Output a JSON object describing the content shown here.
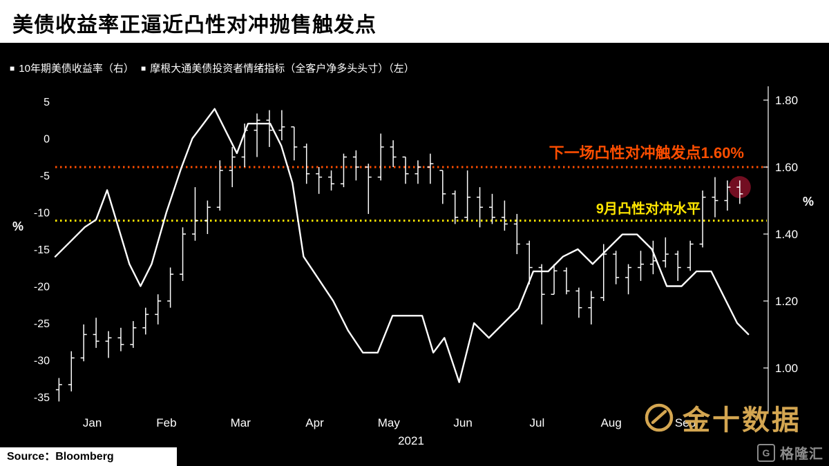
{
  "header": {
    "title": "美债收益率正逼近凸性对冲抛售触发点"
  },
  "legend": {
    "marker": "■",
    "items": [
      {
        "label": "10年期美债收益率（右）"
      },
      {
        "label": "摩根大通美债投资者情绪指标（全客户净多头头寸）（左）"
      }
    ]
  },
  "annotations": {
    "trigger": {
      "label": "下一场凸性对冲触发点1.60%",
      "value": 1.6,
      "color": "#ff4e00"
    },
    "september": {
      "label": "9月凸性对冲水平",
      "value": 1.44,
      "color": "#ffe600"
    },
    "highlight": {
      "m": 9.235,
      "value": 1.54,
      "color": "#7c0f24"
    }
  },
  "footer": {
    "source": "Source：Bloomberg"
  },
  "watermarks": {
    "jin10": "金十数据",
    "gelonghui": "格隆汇",
    "gelonghui_icon": "G"
  },
  "chart_data": {
    "type": "mixed",
    "title": "美债收益率正逼近凸性对冲抛售触发点",
    "x_axis": {
      "month_labels": [
        "Jan",
        "Feb",
        "Mar",
        "Apr",
        "May",
        "Jun",
        "Jul",
        "Aug",
        "Sep"
      ],
      "year_label": "2021",
      "range_months": [
        0,
        9.6
      ]
    },
    "left_axis": {
      "label": "%",
      "ticks": [
        5,
        0,
        -5,
        -10,
        -15,
        -20,
        -25,
        -30,
        -35
      ],
      "range": [
        -35,
        5
      ],
      "series": "摩根大通美债投资者情绪指标（全客户净多头头寸）"
    },
    "right_axis": {
      "label": "%",
      "ticks": [
        1.8,
        1.6,
        1.4,
        1.2,
        1.0
      ],
      "range": [
        1.0,
        1.8
      ],
      "series": "10年期美债收益率"
    },
    "reference_lines": [
      {
        "axis": "right",
        "value": 1.6,
        "style": "dotted",
        "color": "#ff4e00",
        "label": "下一场凸性对冲触发点1.60%"
      },
      {
        "axis": "right",
        "value": 1.44,
        "style": "dotted",
        "color": "#ffe600",
        "label": "9月凸性对冲水平"
      }
    ],
    "series": [
      {
        "name": "10年期美债收益率",
        "type": "hlc_bar",
        "axis": "right",
        "start_month": 0.05,
        "step_month": 0.167,
        "bars": [
          [
            0.9,
            0.97,
            0.95
          ],
          [
            0.93,
            1.05,
            1.03
          ],
          [
            1.02,
            1.13,
            1.1
          ],
          [
            1.06,
            1.15,
            1.08
          ],
          [
            1.03,
            1.11,
            1.09
          ],
          [
            1.05,
            1.12,
            1.07
          ],
          [
            1.06,
            1.14,
            1.12
          ],
          [
            1.1,
            1.18,
            1.16
          ],
          [
            1.13,
            1.22,
            1.2
          ],
          [
            1.18,
            1.3,
            1.28
          ],
          [
            1.26,
            1.42,
            1.4
          ],
          [
            1.38,
            1.54,
            1.44
          ],
          [
            1.4,
            1.5,
            1.48
          ],
          [
            1.47,
            1.62,
            1.59
          ],
          [
            1.54,
            1.66,
            1.63
          ],
          [
            1.6,
            1.73,
            1.71
          ],
          [
            1.63,
            1.76,
            1.74
          ],
          [
            1.66,
            1.77,
            1.71
          ],
          [
            1.68,
            1.77,
            1.72
          ],
          [
            1.62,
            1.72,
            1.66
          ],
          [
            1.55,
            1.67,
            1.58
          ],
          [
            1.52,
            1.6,
            1.57
          ],
          [
            1.53,
            1.59,
            1.55
          ],
          [
            1.54,
            1.64,
            1.63
          ],
          [
            1.56,
            1.65,
            1.6
          ],
          [
            1.46,
            1.61,
            1.57
          ],
          [
            1.56,
            1.7,
            1.66
          ],
          [
            1.6,
            1.68,
            1.63
          ],
          [
            1.55,
            1.63,
            1.58
          ],
          [
            1.55,
            1.62,
            1.6
          ],
          [
            1.55,
            1.64,
            1.61
          ],
          [
            1.49,
            1.59,
            1.52
          ],
          [
            1.43,
            1.53,
            1.45
          ],
          [
            1.44,
            1.59,
            1.51
          ],
          [
            1.42,
            1.54,
            1.48
          ],
          [
            1.43,
            1.52,
            1.45
          ],
          [
            1.41,
            1.5,
            1.43
          ],
          [
            1.34,
            1.46,
            1.37
          ],
          [
            1.25,
            1.38,
            1.3
          ],
          [
            1.13,
            1.31,
            1.22
          ],
          [
            1.22,
            1.31,
            1.29
          ],
          [
            1.22,
            1.3,
            1.23
          ],
          [
            1.15,
            1.24,
            1.18
          ],
          [
            1.13,
            1.23,
            1.21
          ],
          [
            1.2,
            1.37,
            1.34
          ],
          [
            1.25,
            1.35,
            1.27
          ],
          [
            1.22,
            1.31,
            1.3
          ],
          [
            1.26,
            1.35,
            1.31
          ],
          [
            1.28,
            1.38,
            1.32
          ],
          [
            1.3,
            1.39,
            1.34
          ],
          [
            1.26,
            1.35,
            1.3
          ],
          [
            1.29,
            1.38,
            1.37
          ],
          [
            1.36,
            1.53,
            1.51
          ],
          [
            1.45,
            1.57,
            1.5
          ],
          [
            1.47,
            1.56,
            1.54
          ],
          [
            1.49,
            1.56,
            1.52
          ]
        ]
      },
      {
        "name": "摩根大通美债投资者情绪指标（全客户净多头头寸）",
        "type": "line",
        "axis": "left",
        "points": [
          [
            0.0,
            -16
          ],
          [
            0.2,
            -14
          ],
          [
            0.4,
            -12
          ],
          [
            0.55,
            -11
          ],
          [
            0.7,
            -7
          ],
          [
            0.85,
            -12
          ],
          [
            1.0,
            -17
          ],
          [
            1.15,
            -20
          ],
          [
            1.3,
            -17
          ],
          [
            1.5,
            -10
          ],
          [
            1.7,
            -4
          ],
          [
            1.85,
            0
          ],
          [
            2.0,
            2
          ],
          [
            2.15,
            4
          ],
          [
            2.3,
            1
          ],
          [
            2.45,
            -2
          ],
          [
            2.6,
            2
          ],
          [
            2.75,
            2
          ],
          [
            2.9,
            2
          ],
          [
            3.05,
            -1
          ],
          [
            3.2,
            -6
          ],
          [
            3.35,
            -16
          ],
          [
            3.55,
            -19
          ],
          [
            3.75,
            -22
          ],
          [
            3.95,
            -26
          ],
          [
            4.15,
            -29
          ],
          [
            4.35,
            -29
          ],
          [
            4.55,
            -24
          ],
          [
            4.75,
            -24
          ],
          [
            4.95,
            -24
          ],
          [
            5.1,
            -29
          ],
          [
            5.25,
            -27
          ],
          [
            5.45,
            -33
          ],
          [
            5.65,
            -25
          ],
          [
            5.85,
            -27
          ],
          [
            6.05,
            -25
          ],
          [
            6.25,
            -23
          ],
          [
            6.45,
            -18
          ],
          [
            6.65,
            -18
          ],
          [
            6.85,
            -16
          ],
          [
            7.05,
            -15
          ],
          [
            7.25,
            -17
          ],
          [
            7.45,
            -15
          ],
          [
            7.65,
            -13
          ],
          [
            7.85,
            -13
          ],
          [
            8.05,
            -15
          ],
          [
            8.25,
            -20
          ],
          [
            8.45,
            -20
          ],
          [
            8.65,
            -18
          ],
          [
            8.85,
            -18
          ],
          [
            9.05,
            -22
          ],
          [
            9.2,
            -25
          ],
          [
            9.35,
            -26.5
          ]
        ]
      }
    ]
  }
}
